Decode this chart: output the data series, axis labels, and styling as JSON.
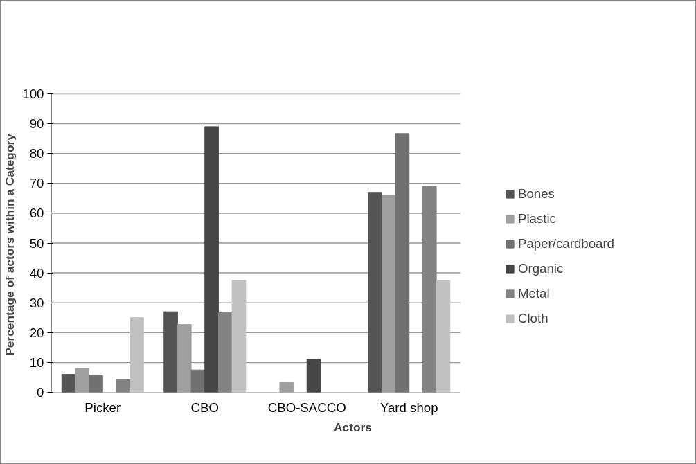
{
  "chart_data": {
    "type": "bar",
    "xlabel": "Actors",
    "ylabel": "Percentage  of actors within a Category",
    "categories": [
      "Picker",
      "CBO",
      "CBO-SACCO",
      "Yard shop"
    ],
    "series": [
      {
        "name": "Bones",
        "color": "#555555",
        "values": [
          6,
          27,
          null,
          67
        ]
      },
      {
        "name": "Plastic",
        "color": "#9f9f9f",
        "values": [
          8,
          22.7,
          3.3,
          66
        ]
      },
      {
        "name": "Paper/cardboard",
        "color": "#717171",
        "values": [
          5.6,
          7.5,
          null,
          86.7
        ]
      },
      {
        "name": "Organic",
        "color": "#464646",
        "values": [
          null,
          89,
          11,
          null
        ]
      },
      {
        "name": "Metal",
        "color": "#828282",
        "values": [
          4.4,
          26.7,
          null,
          69
        ]
      },
      {
        "name": "Cloth",
        "color": "#c0c0c0",
        "values": [
          25,
          37.5,
          null,
          37.5
        ]
      }
    ],
    "ylim": [
      0,
      100
    ],
    "yticks": [
      0,
      10,
      20,
      30,
      40,
      50,
      60,
      70,
      80,
      90,
      100
    ],
    "grid": "y",
    "legend": "right"
  }
}
